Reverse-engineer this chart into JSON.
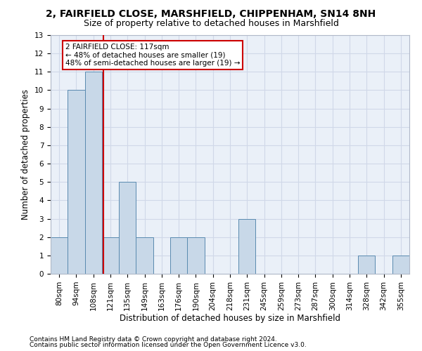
{
  "title1": "2, FAIRFIELD CLOSE, MARSHFIELD, CHIPPENHAM, SN14 8NH",
  "title2": "Size of property relative to detached houses in Marshfield",
  "xlabel": "Distribution of detached houses by size in Marshfield",
  "ylabel": "Number of detached properties",
  "categories": [
    "80sqm",
    "94sqm",
    "108sqm",
    "121sqm",
    "135sqm",
    "149sqm",
    "163sqm",
    "176sqm",
    "190sqm",
    "204sqm",
    "218sqm",
    "231sqm",
    "245sqm",
    "259sqm",
    "273sqm",
    "287sqm",
    "300sqm",
    "314sqm",
    "328sqm",
    "342sqm",
    "355sqm"
  ],
  "values": [
    2,
    10,
    11,
    2,
    5,
    2,
    0,
    2,
    2,
    0,
    0,
    3,
    0,
    0,
    0,
    0,
    0,
    0,
    1,
    0,
    1
  ],
  "bar_color": "#c8d8e8",
  "bar_edge_color": "#5a8ab0",
  "bar_width": 1.0,
  "ylim": [
    0,
    13
  ],
  "yticks": [
    0,
    1,
    2,
    3,
    4,
    5,
    6,
    7,
    8,
    9,
    10,
    11,
    12,
    13
  ],
  "vline_x": 2.6,
  "vline_color": "#cc0000",
  "annotation_box_text": "2 FAIRFIELD CLOSE: 117sqm\n← 48% of detached houses are smaller (19)\n48% of semi-detached houses are larger (19) →",
  "box_edge_color": "#cc0000",
  "footnote1": "Contains HM Land Registry data © Crown copyright and database right 2024.",
  "footnote2": "Contains public sector information licensed under the Open Government Licence v3.0.",
  "grid_color": "#d0d8e8",
  "background_color": "#eaf0f8",
  "title1_fontsize": 10,
  "title2_fontsize": 9,
  "axis_label_fontsize": 8.5,
  "tick_fontsize": 7.5,
  "annot_fontsize": 7.5,
  "footnote_fontsize": 6.5
}
